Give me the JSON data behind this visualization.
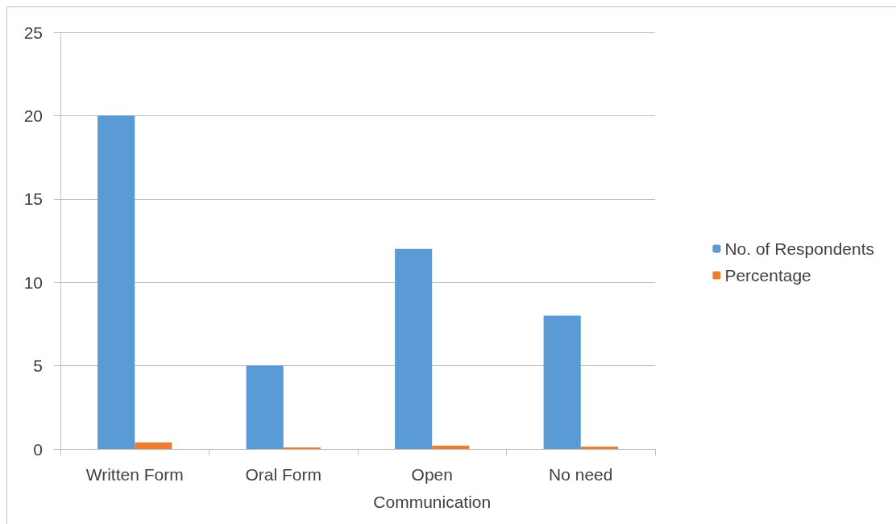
{
  "chart_data": {
    "type": "bar",
    "categories": [
      "Written Form",
      "Oral Form",
      "Open\nCommunication",
      "No need"
    ],
    "series": [
      {
        "name": "No. of Respondents",
        "color": "#5b9bd5",
        "values": [
          20,
          5,
          12,
          8
        ]
      },
      {
        "name": "Percentage",
        "color": "#ed7d31",
        "values": [
          0.4,
          0.1,
          0.2,
          0.15
        ]
      }
    ],
    "ylim": [
      0,
      25
    ],
    "yticks": [
      0,
      5,
      10,
      15,
      20,
      25
    ],
    "grid": "y",
    "legend": "right"
  }
}
